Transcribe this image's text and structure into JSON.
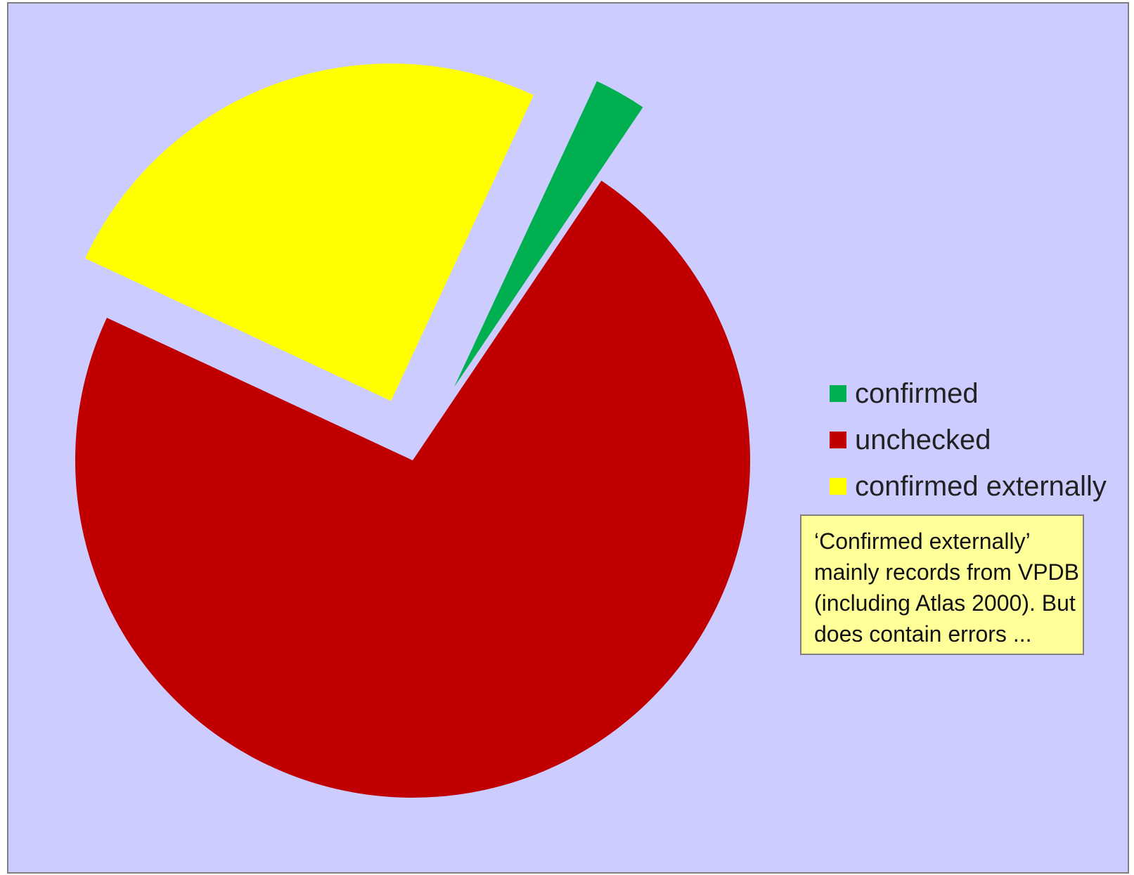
{
  "chart_data": {
    "type": "pie",
    "title": "",
    "exploded": true,
    "slices": [
      {
        "label": "confirmed",
        "value": 2.5,
        "color": "#00b050"
      },
      {
        "label": "unchecked",
        "value": 72.5,
        "color": "#c00000"
      },
      {
        "label": "confirmed externally",
        "value": 25,
        "color": "#ffff00"
      }
    ],
    "legend": {
      "position": "right"
    }
  },
  "annotation": {
    "lines": [
      "‘Confirmed externally’",
      "mainly records from VPDB",
      "(including Atlas 2000).  But",
      "does contain errors ..."
    ],
    "background": "#ffff99"
  },
  "background_color": "#ccccff"
}
